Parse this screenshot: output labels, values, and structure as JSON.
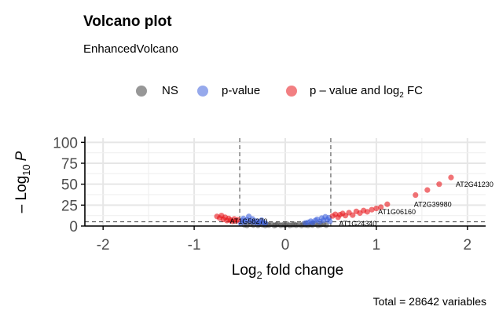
{
  "chart_data": {
    "type": "scatter",
    "title": "Volcano plot",
    "subtitle": "EnhancedVolcano",
    "xlabel": "Log",
    "xlabel_sub": "2",
    "xlabel_suffix": " fold change",
    "ylabel": "– Log",
    "ylabel_sub": "10",
    "ylabel_suffix": "P",
    "caption": "Total = 28642 variables",
    "xlim": [
      -2.2,
      2.2
    ],
    "ylim": [
      0,
      105
    ],
    "xticks": [
      "-2",
      "-1",
      "0",
      "1",
      "2"
    ],
    "yticks": [
      "0",
      "25",
      "50",
      "75",
      "100"
    ],
    "fc_cutoff": 0.5,
    "p_cutoff_y": 5,
    "legend": [
      {
        "label": "NS",
        "color": "#6b6b6b"
      },
      {
        "label": "p-value",
        "color": "#3f63dc"
      },
      {
        "label": "p – value and log",
        "sub": "2",
        "suffix": " FC",
        "color": "#e8151b"
      }
    ],
    "series": [
      {
        "name": "NS",
        "color": "#555555",
        "points": [
          [
            -0.45,
            1.5
          ],
          [
            -0.42,
            0.8
          ],
          [
            -0.38,
            2.1
          ],
          [
            -0.35,
            1.2
          ],
          [
            -0.3,
            0.9
          ],
          [
            -0.28,
            2.4
          ],
          [
            -0.25,
            1.6
          ],
          [
            -0.22,
            0.7
          ],
          [
            -0.2,
            1.9
          ],
          [
            -0.18,
            1.1
          ],
          [
            -0.15,
            2.2
          ],
          [
            -0.12,
            0.6
          ],
          [
            -0.1,
            1.4
          ],
          [
            -0.08,
            2.5
          ],
          [
            -0.05,
            0.9
          ],
          [
            -0.02,
            1.7
          ],
          [
            0.0,
            1.1
          ],
          [
            0.02,
            2.3
          ],
          [
            0.05,
            0.8
          ],
          [
            0.08,
            1.5
          ],
          [
            0.1,
            2.0
          ],
          [
            0.12,
            1.0
          ],
          [
            0.15,
            1.8
          ],
          [
            0.18,
            0.7
          ],
          [
            0.2,
            2.4
          ],
          [
            0.22,
            1.3
          ],
          [
            0.25,
            0.9
          ],
          [
            0.28,
            1.9
          ],
          [
            0.3,
            1.2
          ],
          [
            0.33,
            2.6
          ],
          [
            0.36,
            0.8
          ],
          [
            0.39,
            1.6
          ],
          [
            0.42,
            2.2
          ],
          [
            0.45,
            1.0
          ]
        ]
      },
      {
        "name": "p-value",
        "color": "#3f63dc",
        "points": [
          [
            -0.49,
            3.5
          ],
          [
            -0.47,
            6.5
          ],
          [
            -0.46,
            9.0
          ],
          [
            -0.44,
            4.8
          ],
          [
            -0.42,
            7.5
          ],
          [
            -0.4,
            11.5
          ],
          [
            -0.38,
            5.5
          ],
          [
            -0.36,
            8.5
          ],
          [
            -0.34,
            4.5
          ],
          [
            -0.32,
            6.0
          ],
          [
            -0.3,
            3.8
          ],
          [
            -0.28,
            5.0
          ],
          [
            -0.26,
            7.0
          ],
          [
            -0.24,
            4.2
          ],
          [
            -0.22,
            3.5
          ],
          [
            0.22,
            3.6
          ],
          [
            0.25,
            4.4
          ],
          [
            0.28,
            5.8
          ],
          [
            0.3,
            3.9
          ],
          [
            0.33,
            6.6
          ],
          [
            0.35,
            8.0
          ],
          [
            0.38,
            5.2
          ],
          [
            0.4,
            9.5
          ],
          [
            0.42,
            6.8
          ],
          [
            0.44,
            11.0
          ],
          [
            0.46,
            7.5
          ],
          [
            0.48,
            10.0
          ],
          [
            0.49,
            5.5
          ]
        ]
      },
      {
        "name": "p – value and log2 FC",
        "color": "#e8151b",
        "points": [
          [
            -0.75,
            11.5
          ],
          [
            -0.72,
            9.5
          ],
          [
            -0.7,
            12.5
          ],
          [
            -0.68,
            8.0
          ],
          [
            -0.66,
            10.5
          ],
          [
            -0.64,
            6.5
          ],
          [
            -0.62,
            9.0
          ],
          [
            -0.6,
            7.0
          ],
          [
            -0.58,
            5.5
          ],
          [
            -0.56,
            8.5
          ],
          [
            -0.54,
            6.0
          ],
          [
            -0.52,
            7.5
          ],
          [
            0.52,
            12.0
          ],
          [
            0.55,
            14.0
          ],
          [
            0.58,
            10.5
          ],
          [
            0.6,
            13.5
          ],
          [
            0.63,
            15.0
          ],
          [
            0.66,
            12.5
          ],
          [
            0.7,
            16.0
          ],
          [
            0.74,
            13.0
          ],
          [
            0.78,
            17.5
          ],
          [
            0.82,
            15.5
          ],
          [
            0.86,
            18.5
          ],
          [
            0.9,
            17.0
          ],
          [
            0.95,
            19.5
          ],
          [
            1.0,
            21.0
          ],
          [
            1.05,
            22.5
          ],
          [
            1.12,
            26.0
          ],
          [
            1.43,
            37.0
          ],
          [
            1.56,
            43.0
          ],
          [
            1.69,
            50.0
          ],
          [
            1.82,
            58.0
          ]
        ]
      }
    ],
    "labels": [
      {
        "text": "AT2G41230",
        "x": 1.82,
        "y": 58.0
      },
      {
        "text": "AT2G39980",
        "x": 1.43,
        "y": 37.0
      },
      {
        "text": "AT1G06160",
        "x": 0.95,
        "y": 19.5
      },
      {
        "text": "AT1G58270",
        "x": -0.66,
        "y": 10.5
      },
      {
        "text": "AT1G24340",
        "x": 0.4,
        "y": 9.5
      }
    ]
  }
}
